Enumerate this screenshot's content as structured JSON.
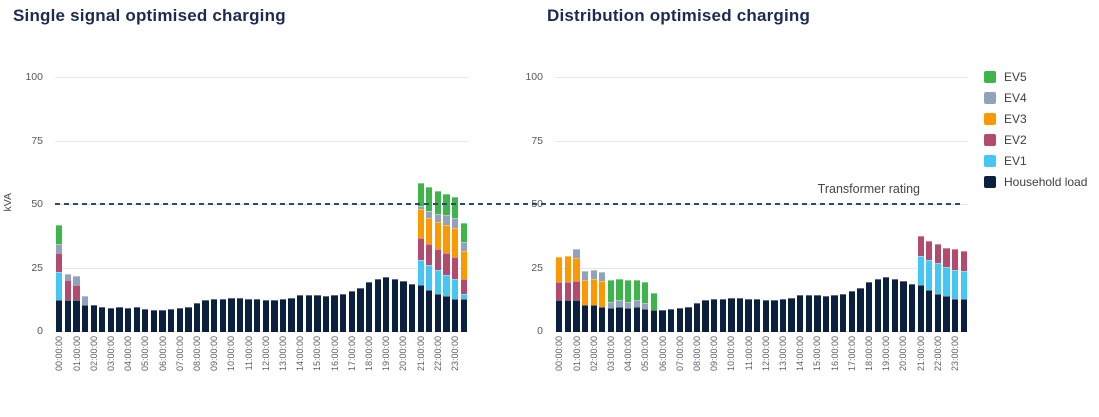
{
  "y_axis": {
    "label": "kVA",
    "ticks": [
      0,
      25,
      50,
      75,
      100
    ],
    "max": 100
  },
  "transformer": {
    "label": "Transformer rating",
    "value": 50
  },
  "legend": [
    {
      "label": "EV5",
      "color": "#3eb54b"
    },
    {
      "label": "EV4",
      "color": "#8fa3bd"
    },
    {
      "label": "EV3",
      "color": "#fd9900"
    },
    {
      "label": "EV2",
      "color": "#b24b6e"
    },
    {
      "label": "EV1",
      "color": "#44c7f4"
    },
    {
      "label": "Household load",
      "color": "#0b1f3e"
    }
  ],
  "chart_data": [
    {
      "type": "bar",
      "stacked": true,
      "title": "Single signal optimised charging",
      "xlabel": "",
      "ylabel": "kVA",
      "ylim": [
        0,
        100
      ],
      "yticks": [
        0,
        25,
        50,
        75,
        100
      ],
      "grid": true,
      "annotation": "Transformer rating = 50",
      "bars_per_hour_label": 2,
      "x_hour_labels": [
        "00:00:00",
        "01:00:00",
        "02:00:00",
        "03:00:00",
        "04:00:00",
        "05:00:00",
        "06:00:00",
        "07:00:00",
        "08:00:00",
        "09:00:00",
        "10:00:00",
        "11:00:00",
        "12:00:00",
        "13:00:00",
        "14:00:00",
        "15:00:00",
        "16:00:00",
        "17:00:00",
        "18:00:00",
        "19:00:00",
        "20:00:00",
        "21:00:00",
        "22:00:00",
        "23:00:00"
      ],
      "stack_order": "bottom_to_top",
      "series": [
        {
          "name": "Household load",
          "color": "#0b1f3e",
          "values": [
            12.5,
            12.5,
            12.5,
            10.5,
            10.5,
            10,
            9.5,
            10,
            9.5,
            10,
            9,
            8.5,
            8.5,
            9,
            9.5,
            10,
            11.5,
            12.5,
            13,
            13,
            13.5,
            13.5,
            13,
            13,
            12.5,
            12.5,
            13,
            13.5,
            14.5,
            14.5,
            14.5,
            14,
            14.5,
            15,
            16,
            17.5,
            19.5,
            21,
            21.5,
            21,
            20,
            19,
            18.5,
            16.5,
            15,
            14,
            13,
            13
          ]
        },
        {
          "name": "EV1",
          "color": "#44c7f4",
          "values": [
            11,
            0,
            0,
            0,
            0,
            0,
            0,
            0,
            0,
            0,
            0,
            0,
            0,
            0,
            0,
            0,
            0,
            0,
            0,
            0,
            0,
            0,
            0,
            0,
            0,
            0,
            0,
            0,
            0,
            0,
            0,
            0,
            0,
            0,
            0,
            0,
            0,
            0,
            0,
            0,
            0,
            0,
            10,
            10,
            9.5,
            8.5,
            8,
            2
          ]
        },
        {
          "name": "EV2",
          "color": "#b24b6e",
          "values": [
            7.5,
            8,
            6,
            0,
            0,
            0,
            0,
            0,
            0,
            0,
            0,
            0,
            0,
            0,
            0,
            0,
            0,
            0,
            0,
            0,
            0,
            0,
            0,
            0,
            0,
            0,
            0,
            0,
            0,
            0,
            0,
            0,
            0,
            0,
            0,
            0,
            0,
            0,
            0,
            0,
            0,
            0,
            8.5,
            8,
            8,
            8.5,
            8.5,
            6
          ]
        },
        {
          "name": "EV3",
          "color": "#fd9900",
          "values": [
            0,
            0,
            0,
            0,
            0,
            0,
            0,
            0,
            0,
            0,
            0,
            0,
            0,
            0,
            0,
            0,
            0,
            0,
            0,
            0,
            0,
            0,
            0,
            0,
            0,
            0,
            0,
            0,
            0,
            0,
            0,
            0,
            0,
            0,
            0,
            0,
            0,
            0,
            0,
            0,
            0,
            0,
            11.5,
            10.5,
            11,
            11,
            11.5,
            11
          ]
        },
        {
          "name": "EV4",
          "color": "#8fa3bd",
          "values": [
            3.5,
            2.5,
            3.5,
            3.5,
            0,
            0,
            0,
            0,
            0,
            0,
            0,
            0,
            0,
            0,
            0,
            0,
            0,
            0,
            0,
            0,
            0,
            0,
            0,
            0,
            0,
            0,
            0,
            0,
            0,
            0,
            0,
            0,
            0,
            0,
            0,
            0,
            0,
            0,
            0,
            0,
            0,
            0,
            1,
            2.5,
            3,
            4,
            4,
            3.5
          ]
        },
        {
          "name": "EV5",
          "color": "#3eb54b",
          "values": [
            7.5,
            0,
            0,
            0,
            0,
            0,
            0,
            0,
            0,
            0,
            0,
            0,
            0,
            0,
            0,
            0,
            0,
            0,
            0,
            0,
            0,
            0,
            0,
            0,
            0,
            0,
            0,
            0,
            0,
            0,
            0,
            0,
            0,
            0,
            0,
            0,
            0,
            0,
            0,
            0,
            0,
            0,
            9,
            9.5,
            9,
            8.5,
            8,
            7.5
          ]
        }
      ]
    },
    {
      "type": "bar",
      "stacked": true,
      "title": "Distribution optimised charging",
      "xlabel": "",
      "ylabel": "kVA",
      "ylim": [
        0,
        100
      ],
      "yticks": [
        0,
        25,
        50,
        75,
        100
      ],
      "grid": true,
      "annotation": "Transformer rating = 50",
      "bars_per_hour_label": 2,
      "x_hour_labels": [
        "00:00:00",
        "01:00:00",
        "02:00:00",
        "03:00:00",
        "04:00:00",
        "05:00:00",
        "06:00:00",
        "07:00:00",
        "08:00:00",
        "09:00:00",
        "10:00:00",
        "11:00:00",
        "12:00:00",
        "13:00:00",
        "14:00:00",
        "15:00:00",
        "16:00:00",
        "17:00:00",
        "18:00:00",
        "19:00:00",
        "20:00:00",
        "21:00:00",
        "22:00:00",
        "23:00:00"
      ],
      "stack_order": "bottom_to_top",
      "series": [
        {
          "name": "Household load",
          "color": "#0b1f3e",
          "values": [
            12.5,
            12.5,
            12.5,
            10.5,
            10.5,
            10,
            9.5,
            10,
            9.5,
            10,
            9,
            8.5,
            8.5,
            9,
            9.5,
            10,
            11.5,
            12.5,
            13,
            13,
            13.5,
            13.5,
            13,
            13,
            12.5,
            12.5,
            13,
            13.5,
            14.5,
            14.5,
            14.5,
            14,
            14.5,
            15,
            16,
            17.5,
            19.5,
            21,
            21.5,
            21,
            20,
            19,
            18.5,
            16.5,
            15,
            14,
            13,
            13
          ]
        },
        {
          "name": "EV1",
          "color": "#44c7f4",
          "values": [
            0,
            0,
            0,
            0,
            0,
            0,
            0,
            0,
            0,
            0,
            0,
            0,
            0,
            0,
            0,
            0,
            0,
            0,
            0,
            0,
            0,
            0,
            0,
            0,
            0,
            0,
            0,
            0,
            0,
            0,
            0,
            0,
            0,
            0,
            0,
            0,
            0,
            0,
            0,
            0,
            0,
            0,
            11.5,
            12,
            12,
            11.5,
            11.5,
            11
          ]
        },
        {
          "name": "EV2",
          "color": "#b24b6e",
          "values": [
            7,
            7,
            7.5,
            0,
            0,
            0,
            0,
            0,
            0,
            0,
            0,
            0,
            0,
            0,
            0,
            0,
            0,
            0,
            0,
            0,
            0,
            0,
            0,
            0,
            0,
            0,
            0,
            0,
            0,
            0,
            0,
            0,
            0,
            0,
            0,
            0,
            0,
            0,
            0,
            0,
            0,
            0,
            8,
            7.5,
            7.5,
            7.5,
            8,
            8
          ]
        },
        {
          "name": "EV3",
          "color": "#fd9900",
          "values": [
            10,
            10.5,
            9,
            10,
            10.5,
            10,
            0,
            0,
            0,
            0,
            0,
            0,
            0,
            0,
            0,
            0,
            0,
            0,
            0,
            0,
            0,
            0,
            0,
            0,
            0,
            0,
            0,
            0,
            0,
            0,
            0,
            0,
            0,
            0,
            0,
            0,
            0,
            0,
            0,
            0,
            0,
            0,
            0,
            0,
            0,
            0,
            0,
            0
          ]
        },
        {
          "name": "EV4",
          "color": "#8fa3bd",
          "values": [
            0,
            0,
            3.5,
            3.5,
            3.5,
            3.5,
            2.5,
            2.5,
            2.5,
            2.5,
            2.5,
            0,
            0,
            0,
            0,
            0,
            0,
            0,
            0,
            0,
            0,
            0,
            0,
            0,
            0,
            0,
            0,
            0,
            0,
            0,
            0,
            0,
            0,
            0,
            0,
            0,
            0,
            0,
            0,
            0,
            0,
            0,
            0,
            0,
            0,
            0,
            0,
            0
          ]
        },
        {
          "name": "EV5",
          "color": "#3eb54b",
          "values": [
            0,
            0,
            0,
            0,
            0,
            0,
            8.5,
            8.5,
            8.5,
            8,
            8,
            7,
            0,
            0,
            0,
            0,
            0,
            0,
            0,
            0,
            0,
            0,
            0,
            0,
            0,
            0,
            0,
            0,
            0,
            0,
            0,
            0,
            0,
            0,
            0,
            0,
            0,
            0,
            0,
            0,
            0,
            0,
            0,
            0,
            0,
            0,
            0,
            0
          ]
        }
      ]
    }
  ]
}
